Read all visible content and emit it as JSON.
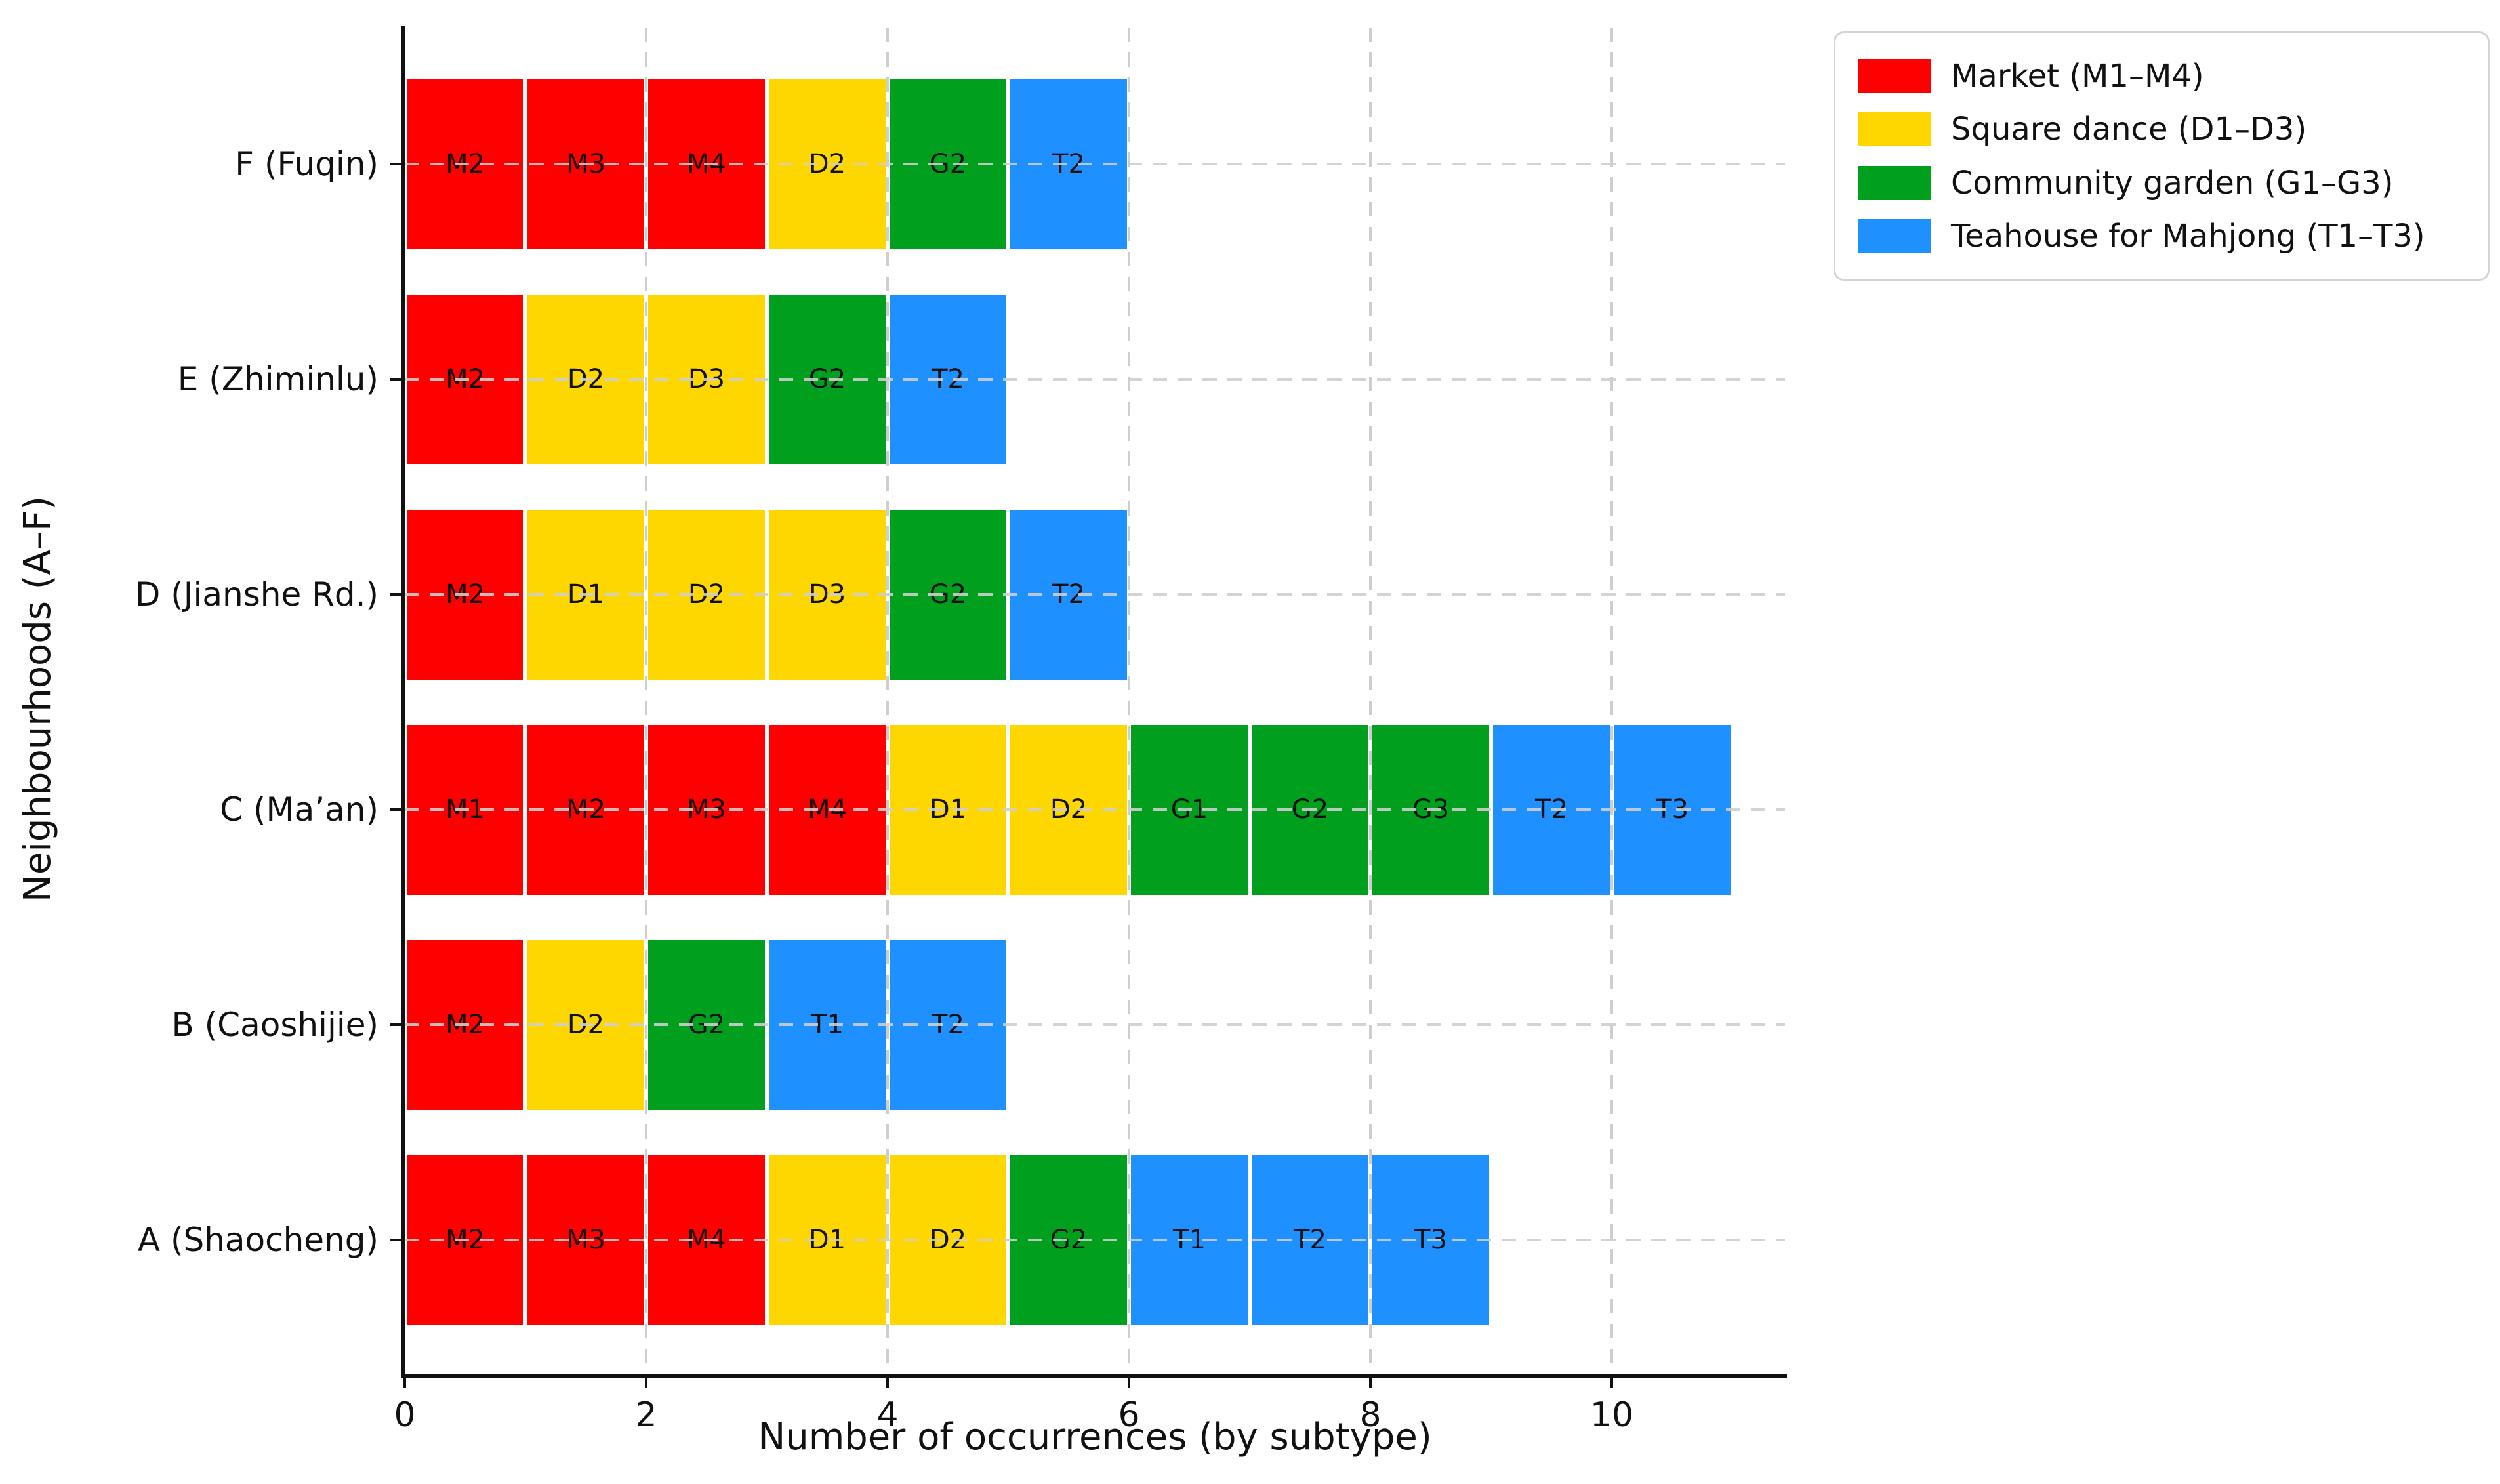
{
  "chart_data": {
    "type": "bar",
    "orientation": "horizontal",
    "stacked_unit_segments": true,
    "title": "",
    "xlabel": "Number of occurrences (by subtype)",
    "ylabel": "Neighbourhoods (A–F)",
    "x_ticks": [
      0,
      2,
      4,
      6,
      8,
      10
    ],
    "xlim": [
      0,
      11.5
    ],
    "grid": "dashed-gray",
    "legend_position": "upper-right-outside",
    "colors": {
      "market": "#ff0000",
      "dance": "#ffd700",
      "garden": "#00a01e",
      "teahouse": "#1e90ff"
    },
    "legend": [
      {
        "key": "market",
        "label": "Market (M1–M4)",
        "color": "#ff0000"
      },
      {
        "key": "dance",
        "label": "Square dance (D1–D3)",
        "color": "#ffd700"
      },
      {
        "key": "garden",
        "label": "Community garden (G1–G3)",
        "color": "#00a01e"
      },
      {
        "key": "teahouse",
        "label": "Teahouse for Mahjong (T1–T3)",
        "color": "#1e90ff"
      }
    ],
    "rows_bottom_to_top": [
      {
        "key": "A",
        "label": "A (Shaocheng)",
        "total": 9,
        "segments": [
          {
            "code": "M2",
            "category": "market"
          },
          {
            "code": "M3",
            "category": "market"
          },
          {
            "code": "M4",
            "category": "market"
          },
          {
            "code": "D1",
            "category": "dance"
          },
          {
            "code": "D2",
            "category": "dance"
          },
          {
            "code": "G2",
            "category": "garden"
          },
          {
            "code": "T1",
            "category": "teahouse"
          },
          {
            "code": "T2",
            "category": "teahouse"
          },
          {
            "code": "T3",
            "category": "teahouse"
          }
        ]
      },
      {
        "key": "B",
        "label": "B (Caoshijie)",
        "total": 5,
        "segments": [
          {
            "code": "M2",
            "category": "market"
          },
          {
            "code": "D2",
            "category": "dance"
          },
          {
            "code": "G2",
            "category": "garden"
          },
          {
            "code": "T1",
            "category": "teahouse"
          },
          {
            "code": "T2",
            "category": "teahouse"
          }
        ]
      },
      {
        "key": "C",
        "label": "C (Ma’an)",
        "total": 11,
        "segments": [
          {
            "code": "M1",
            "category": "market"
          },
          {
            "code": "M2",
            "category": "market"
          },
          {
            "code": "M3",
            "category": "market"
          },
          {
            "code": "M4",
            "category": "market"
          },
          {
            "code": "D1",
            "category": "dance"
          },
          {
            "code": "D2",
            "category": "dance"
          },
          {
            "code": "G1",
            "category": "garden"
          },
          {
            "code": "G2",
            "category": "garden"
          },
          {
            "code": "G3",
            "category": "garden"
          },
          {
            "code": "T2",
            "category": "teahouse"
          },
          {
            "code": "T3",
            "category": "teahouse"
          }
        ]
      },
      {
        "key": "D",
        "label": "D (Jianshe Rd.)",
        "total": 6,
        "segments": [
          {
            "code": "M2",
            "category": "market"
          },
          {
            "code": "D1",
            "category": "dance"
          },
          {
            "code": "D2",
            "category": "dance"
          },
          {
            "code": "D3",
            "category": "dance"
          },
          {
            "code": "G2",
            "category": "garden"
          },
          {
            "code": "T2",
            "category": "teahouse"
          }
        ]
      },
      {
        "key": "E",
        "label": "E (Zhiminlu)",
        "total": 5,
        "segments": [
          {
            "code": "M2",
            "category": "market"
          },
          {
            "code": "D2",
            "category": "dance"
          },
          {
            "code": "D3",
            "category": "dance"
          },
          {
            "code": "G2",
            "category": "garden"
          },
          {
            "code": "T2",
            "category": "teahouse"
          }
        ]
      },
      {
        "key": "F",
        "label": "F (Fuqin)",
        "total": 6,
        "segments": [
          {
            "code": "M2",
            "category": "market"
          },
          {
            "code": "M3",
            "category": "market"
          },
          {
            "code": "M4",
            "category": "market"
          },
          {
            "code": "D2",
            "category": "dance"
          },
          {
            "code": "G2",
            "category": "garden"
          },
          {
            "code": "T2",
            "category": "teahouse"
          }
        ]
      }
    ]
  }
}
